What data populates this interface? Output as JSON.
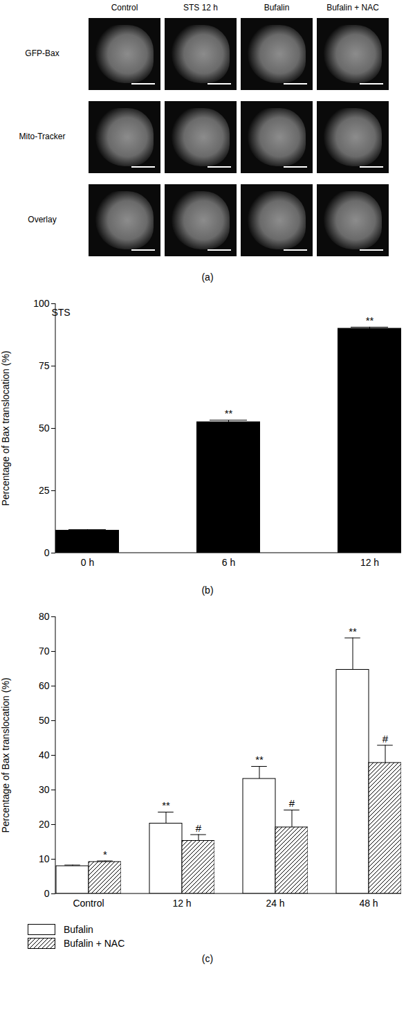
{
  "image_panel": {
    "caption": "(a)",
    "columns": [
      "Control",
      "STS 12 h",
      "Bufalin",
      "Bufalin + NAC"
    ],
    "rows": [
      "GFP-Bax",
      "Mito-Tracker",
      "Overlay"
    ]
  },
  "chart_data": [
    {
      "type": "bar",
      "caption": "(b)",
      "title": "STS",
      "categories": [
        "0 h",
        "6 h",
        "12 h"
      ],
      "values": [
        9,
        52.5,
        90
      ],
      "errors": [
        0.4,
        0.8,
        0.6
      ],
      "significance": [
        null,
        "**",
        "**"
      ],
      "color": "#000000",
      "ylabel": "Percentage of Bax translocation (%)",
      "ylim": [
        0,
        100
      ],
      "yticks": [
        0,
        25,
        50,
        75,
        100
      ],
      "grid": false
    },
    {
      "type": "bar",
      "caption": "(c)",
      "categories": [
        "Control",
        "12 h",
        "24 h",
        "48 h"
      ],
      "series": [
        {
          "name": "Bufalin",
          "color": "#ffffff",
          "values": [
            8,
            20.3,
            33.2,
            64.7
          ],
          "errors": [
            0.3,
            3.3,
            3.6,
            9.2
          ],
          "significance": [
            null,
            "**",
            "**",
            "**"
          ]
        },
        {
          "name": "Bufalin + NAC",
          "color": "#000000",
          "line_style": "hatched",
          "values": [
            9.2,
            15.3,
            19.2,
            37.8
          ],
          "errors": [
            0.3,
            1.8,
            5,
            5.1
          ],
          "significance": [
            "*",
            "#",
            "#",
            "#"
          ]
        }
      ],
      "ylabel": "Percentage of Bax translocation (%)",
      "ylim": [
        0,
        80
      ],
      "yticks": [
        0,
        10,
        20,
        30,
        40,
        50,
        60,
        70,
        80
      ],
      "legend": "bottom",
      "grid": false
    }
  ]
}
